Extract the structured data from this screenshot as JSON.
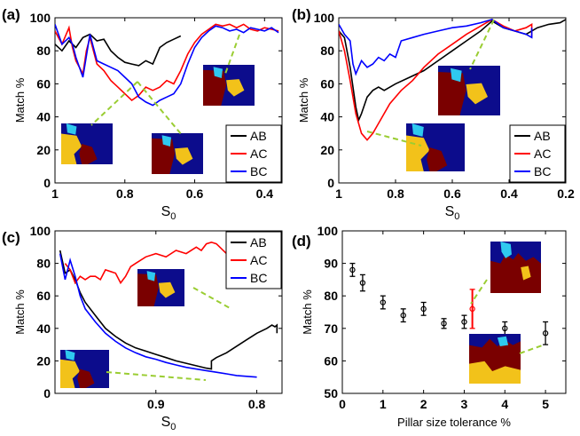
{
  "chart_data": [
    {
      "panel_label": "(a)",
      "type": "line",
      "xlabel": "S",
      "xlabel_sub": "0",
      "ylabel": "Match %",
      "xlim": [
        1.0,
        0.35
      ],
      "ylim": [
        0,
        100
      ],
      "xticks": [
        1,
        0.8,
        0.6,
        0.4
      ],
      "xtick_labels": [
        "1",
        "0.8",
        "0.6",
        "0.4"
      ],
      "yticks": [
        0,
        20,
        40,
        60,
        80,
        100
      ],
      "ytick_labels": [
        "0",
        "20",
        "40",
        "60",
        "80",
        "100"
      ],
      "legend": "bottom-right",
      "series": [
        {
          "name": "AB",
          "color": "#000000",
          "x": [
            1.0,
            0.98,
            0.96,
            0.94,
            0.92,
            0.9,
            0.88,
            0.86,
            0.84,
            0.82,
            0.8,
            0.78,
            0.76,
            0.74,
            0.72,
            0.7,
            0.68,
            0.66,
            0.64
          ],
          "y": [
            84,
            80,
            86,
            82,
            88,
            90,
            86,
            87,
            80,
            76,
            73,
            72,
            71,
            74,
            72,
            82,
            85,
            87,
            89
          ]
        },
        {
          "name": "AC",
          "color": "#ff0000",
          "x": [
            1.0,
            0.98,
            0.96,
            0.95,
            0.94,
            0.92,
            0.91,
            0.9,
            0.88,
            0.86,
            0.84,
            0.82,
            0.8,
            0.78,
            0.76,
            0.74,
            0.72,
            0.7,
            0.68,
            0.66,
            0.64,
            0.62,
            0.6,
            0.58,
            0.56,
            0.54,
            0.52,
            0.5,
            0.48,
            0.46,
            0.44,
            0.42,
            0.4,
            0.38,
            0.36
          ],
          "y": [
            92,
            84,
            94,
            82,
            74,
            66,
            80,
            88,
            72,
            68,
            62,
            58,
            54,
            50,
            53,
            58,
            56,
            58,
            62,
            60,
            68,
            78,
            85,
            90,
            93,
            96,
            95,
            96,
            94,
            96,
            93,
            92,
            94,
            93,
            92
          ]
        },
        {
          "name": "BC",
          "color": "#0000ff",
          "x": [
            1.0,
            0.98,
            0.96,
            0.95,
            0.94,
            0.92,
            0.9,
            0.88,
            0.86,
            0.84,
            0.82,
            0.8,
            0.78,
            0.76,
            0.74,
            0.72,
            0.7,
            0.68,
            0.66,
            0.64,
            0.62,
            0.6,
            0.58,
            0.56,
            0.54,
            0.52,
            0.5,
            0.48,
            0.46,
            0.44,
            0.42,
            0.4,
            0.38,
            0.36
          ],
          "y": [
            96,
            84,
            88,
            84,
            76,
            64,
            90,
            74,
            72,
            70,
            68,
            64,
            60,
            52,
            49,
            47,
            50,
            52,
            54,
            60,
            72,
            82,
            88,
            92,
            95,
            94,
            92,
            93,
            91,
            94,
            93,
            92,
            94,
            91
          ]
        }
      ]
    },
    {
      "panel_label": "(b)",
      "type": "line",
      "xlabel": "S",
      "xlabel_sub": "0",
      "ylabel": "Match %",
      "xlim": [
        1.0,
        0.2
      ],
      "ylim": [
        0,
        100
      ],
      "xticks": [
        1,
        0.8,
        0.6,
        0.4,
        0.2
      ],
      "xtick_labels": [
        "1",
        "0.8",
        "0.6",
        "0.4",
        "0.2"
      ],
      "yticks": [
        0,
        20,
        40,
        60,
        80,
        100
      ],
      "ytick_labels": [
        "0",
        "20",
        "40",
        "60",
        "80",
        "100"
      ],
      "legend": "bottom-right",
      "series": [
        {
          "name": "AB",
          "color": "#000000",
          "x": [
            1.0,
            0.98,
            0.96,
            0.94,
            0.93,
            0.92,
            0.9,
            0.88,
            0.86,
            0.84,
            0.8,
            0.75,
            0.7,
            0.65,
            0.6,
            0.55,
            0.5,
            0.46,
            0.42,
            0.38,
            0.34,
            0.3,
            0.26,
            0.22,
            0.2
          ],
          "y": [
            92,
            88,
            70,
            46,
            38,
            42,
            52,
            56,
            58,
            56,
            60,
            64,
            68,
            74,
            80,
            86,
            92,
            98,
            94,
            92,
            90,
            94,
            96,
            97,
            99
          ]
        },
        {
          "name": "AC",
          "color": "#ff0000",
          "x": [
            1.0,
            0.98,
            0.96,
            0.94,
            0.92,
            0.9,
            0.88,
            0.86,
            0.82,
            0.78,
            0.74,
            0.7,
            0.65,
            0.6,
            0.55,
            0.5,
            0.46,
            0.42,
            0.38,
            0.34,
            0.32,
            0.32
          ],
          "y": [
            92,
            80,
            62,
            42,
            30,
            26,
            30,
            36,
            48,
            56,
            62,
            70,
            78,
            84,
            90,
            95,
            99,
            95,
            92,
            94,
            96,
            88
          ]
        },
        {
          "name": "BC",
          "color": "#0000ff",
          "x": [
            1.0,
            0.98,
            0.96,
            0.95,
            0.94,
            0.92,
            0.9,
            0.88,
            0.86,
            0.84,
            0.82,
            0.8,
            0.78,
            0.74,
            0.7,
            0.65,
            0.6,
            0.55,
            0.5,
            0.46,
            0.42,
            0.38,
            0.34,
            0.32,
            0.32
          ],
          "y": [
            96,
            90,
            86,
            72,
            66,
            74,
            70,
            72,
            76,
            74,
            78,
            76,
            86,
            88,
            90,
            92,
            94,
            95,
            97,
            99,
            94,
            92,
            90,
            88,
            94
          ]
        }
      ]
    },
    {
      "panel_label": "(c)",
      "type": "line",
      "xlabel": "S",
      "xlabel_sub": "0",
      "ylabel": "Match %",
      "xlim": [
        1.0,
        0.775
      ],
      "ylim": [
        0,
        100
      ],
      "xticks": [
        0.9,
        0.8
      ],
      "xtick_labels": [
        "0.9",
        "0.8"
      ],
      "yticks": [
        0,
        20,
        40,
        60,
        80,
        100
      ],
      "ytick_labels": [
        "0",
        "20",
        "40",
        "60",
        "80",
        "100"
      ],
      "legend": "top-right",
      "series": [
        {
          "name": "AB",
          "color": "#000000",
          "x": [
            0.995,
            0.99,
            0.985,
            0.98,
            0.975,
            0.97,
            0.96,
            0.95,
            0.94,
            0.93,
            0.92,
            0.91,
            0.9,
            0.89,
            0.88,
            0.87,
            0.86,
            0.85,
            0.845,
            0.845,
            0.84,
            0.83,
            0.82,
            0.81,
            0.8,
            0.79,
            0.785,
            0.782,
            0.78,
            0.78
          ],
          "y": [
            88,
            74,
            76,
            70,
            62,
            56,
            48,
            40,
            35,
            31,
            28,
            26,
            24,
            22,
            20,
            18.5,
            17,
            15.5,
            15,
            20,
            22,
            25,
            29,
            33,
            37,
            40,
            42,
            41,
            42,
            37
          ]
        },
        {
          "name": "AC",
          "color": "#ff0000",
          "x": [
            0.99,
            0.985,
            0.98,
            0.975,
            0.97,
            0.965,
            0.96,
            0.955,
            0.95,
            0.94,
            0.935,
            0.93,
            0.925,
            0.92,
            0.91,
            0.9,
            0.89,
            0.88,
            0.87,
            0.86,
            0.855,
            0.85,
            0.845,
            0.84,
            0.83,
            0.82,
            0.81,
            0.8
          ],
          "y": [
            80,
            76,
            68,
            72,
            70,
            72,
            72,
            70,
            76,
            74,
            68,
            72,
            78,
            80,
            84,
            86,
            84,
            88,
            86,
            90,
            88,
            92,
            93,
            92,
            86,
            82,
            76,
            71
          ]
        },
        {
          "name": "BC",
          "color": "#0000ff",
          "x": [
            0.995,
            0.99,
            0.985,
            0.98,
            0.975,
            0.97,
            0.96,
            0.95,
            0.94,
            0.93,
            0.92,
            0.91,
            0.9,
            0.89,
            0.88,
            0.87,
            0.86,
            0.85,
            0.84,
            0.83,
            0.82,
            0.81,
            0.8
          ],
          "y": [
            86,
            70,
            82,
            72,
            60,
            52,
            44,
            37,
            32,
            28,
            25,
            22.5,
            21,
            19,
            17.5,
            16,
            15,
            14,
            13,
            12,
            11,
            10.5,
            10
          ]
        }
      ]
    },
    {
      "panel_label": "(d)",
      "type": "scatter",
      "xlabel": "Pillar size tolerance %",
      "ylabel": "Match %",
      "xlim": [
        0,
        5.5
      ],
      "ylim": [
        50,
        100
      ],
      "xticks": [
        0,
        1,
        2,
        3,
        4,
        5
      ],
      "xtick_labels": [
        "0",
        "1",
        "2",
        "3",
        "4",
        "5"
      ],
      "yticks": [
        50,
        60,
        70,
        80,
        90,
        100
      ],
      "ytick_labels": [
        "50",
        "60",
        "70",
        "80",
        "90",
        "100"
      ],
      "points": [
        {
          "x": 0.25,
          "y": 88,
          "err": 2,
          "color": "#000000"
        },
        {
          "x": 0.5,
          "y": 84,
          "err": 2.5,
          "color": "#000000"
        },
        {
          "x": 1.0,
          "y": 78,
          "err": 2,
          "color": "#000000"
        },
        {
          "x": 1.5,
          "y": 74,
          "err": 2,
          "color": "#000000"
        },
        {
          "x": 2.0,
          "y": 76,
          "err": 2,
          "color": "#000000"
        },
        {
          "x": 2.5,
          "y": 71.5,
          "err": 1.5,
          "color": "#000000"
        },
        {
          "x": 3.0,
          "y": 72,
          "err": 2,
          "color": "#000000"
        },
        {
          "x": 3.2,
          "y": 76,
          "err": 6,
          "color": "#ff0000"
        },
        {
          "x": 4.0,
          "y": 70,
          "err": 2,
          "color": "#000000"
        },
        {
          "x": 5.0,
          "y": 68.5,
          "err": 3.5,
          "color": "#000000"
        }
      ]
    }
  ],
  "colors": {
    "map_navy": "#0c0c8c",
    "map_maroon": "#7a0000",
    "map_gold": "#f2c21a",
    "map_cyan": "#2fc9ef",
    "callout_line": "#9acd32"
  }
}
